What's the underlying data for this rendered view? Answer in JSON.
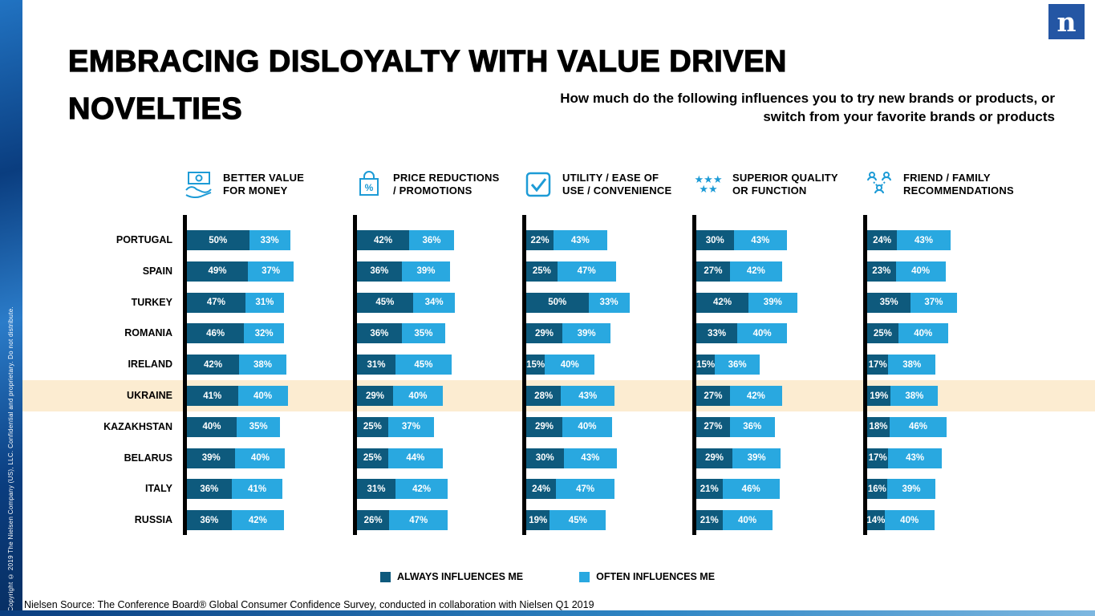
{
  "page": {
    "title_line1": "EMBRACING DISLOYALTY WITH VALUE DRIVEN",
    "title_line2": "NOVELTIES",
    "subtitle": "How much do the following influences you to try new brands or products, or switch from your favorite brands or products",
    "copyright": "Copyright © 2019 The Nielsen Company (US), LLC. Confidential and proprietary. Do not distribute.",
    "source": "Nielsen Source: The Conference Board® Global Consumer Confidence Survey, conducted in collaboration with Nielsen Q1 2019",
    "logo_letter": "n"
  },
  "legend": [
    {
      "label": "ALWAYS INFLUENCES ME",
      "color": "#0e5a7d"
    },
    {
      "label": "OFTEN INFLUENCES ME",
      "color": "#29a8e0"
    }
  ],
  "highlight_color": "#fcecd1",
  "chart_data": {
    "type": "bar",
    "orientation": "horizontal",
    "stacked": true,
    "unit": "%",
    "categories": [
      "PORTUGAL",
      "SPAIN",
      "TURKEY",
      "ROMANIA",
      "IRELAND",
      "UKRAINE",
      "KAZAKHSTAN",
      "BELARUS",
      "ITALY",
      "RUSSIA"
    ],
    "highlighted_category": "UKRAINE",
    "series_names": [
      "ALWAYS INFLUENCES ME",
      "OFTEN INFLUENCES ME"
    ],
    "groups": [
      {
        "label": "BETTER VALUE\nFOR MONEY",
        "icon": "money-hand-icon",
        "series": [
          {
            "name": "ALWAYS INFLUENCES ME",
            "values": [
              50,
              49,
              47,
              46,
              42,
              41,
              40,
              39,
              36,
              36
            ]
          },
          {
            "name": "OFTEN INFLUENCES ME",
            "values": [
              33,
              37,
              31,
              32,
              38,
              40,
              35,
              40,
              41,
              42
            ]
          }
        ]
      },
      {
        "label": "PRICE REDUCTIONS\n/ PROMOTIONS",
        "icon": "bag-percent-icon",
        "series": [
          {
            "name": "ALWAYS INFLUENCES ME",
            "values": [
              42,
              36,
              45,
              36,
              31,
              29,
              25,
              25,
              31,
              26
            ]
          },
          {
            "name": "OFTEN INFLUENCES ME",
            "values": [
              36,
              39,
              34,
              35,
              45,
              40,
              37,
              44,
              42,
              47
            ]
          }
        ]
      },
      {
        "label": "UTILITY / EASE OF\nUSE / CONVENIENCE",
        "icon": "check-square-icon",
        "series": [
          {
            "name": "ALWAYS INFLUENCES ME",
            "values": [
              22,
              25,
              50,
              29,
              15,
              28,
              29,
              30,
              24,
              19
            ]
          },
          {
            "name": "OFTEN INFLUENCES ME",
            "values": [
              43,
              47,
              33,
              39,
              40,
              43,
              40,
              43,
              47,
              45
            ]
          }
        ]
      },
      {
        "label": "SUPERIOR QUALITY\nOR FUNCTION",
        "icon": "stars-icon",
        "series": [
          {
            "name": "ALWAYS INFLUENCES ME",
            "values": [
              30,
              27,
              42,
              33,
              15,
              27,
              27,
              29,
              21,
              21
            ]
          },
          {
            "name": "OFTEN INFLUENCES ME",
            "values": [
              43,
              42,
              39,
              40,
              36,
              42,
              36,
              39,
              46,
              40
            ]
          }
        ]
      },
      {
        "label": "FRIEND / FAMILY\nRECOMMENDATIONS",
        "icon": "people-network-icon",
        "series": [
          {
            "name": "ALWAYS INFLUENCES ME",
            "values": [
              24,
              23,
              35,
              25,
              17,
              19,
              18,
              17,
              16,
              14
            ]
          },
          {
            "name": "OFTEN INFLUENCES ME",
            "values": [
              43,
              40,
              37,
              40,
              38,
              38,
              46,
              43,
              39,
              40
            ]
          }
        ]
      }
    ]
  }
}
